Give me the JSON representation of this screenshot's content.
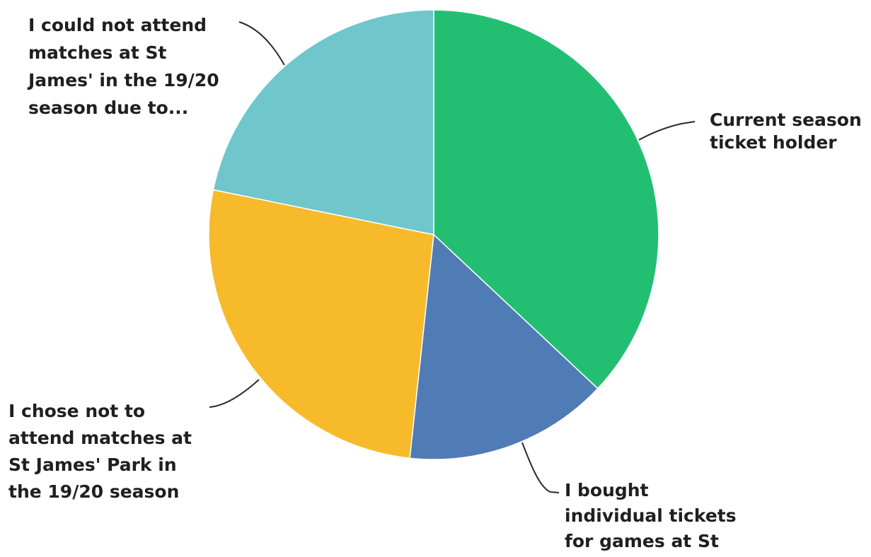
{
  "chart_data": {
    "type": "pie",
    "title": "",
    "start_angle_deg": 0,
    "direction": "clockwise",
    "slices": [
      {
        "label_lines": [
          "Current season",
          "ticket holder"
        ],
        "value": 37.0,
        "color": "#22bf72"
      },
      {
        "label_lines": [
          "I bought",
          "individual tickets",
          "for games at St"
        ],
        "value": 14.7,
        "color": "#507cb5"
      },
      {
        "label_lines": [
          "I chose not to",
          "attend matches at",
          "St James' Park in",
          "the 19/20 season"
        ],
        "value": 26.5,
        "color": "#f6ba2a"
      },
      {
        "label_lines": [
          "I could not attend",
          "matches at St",
          "James' in the 19/20",
          "season due to..."
        ],
        "value": 21.8,
        "color": "#6fc6cb"
      }
    ]
  }
}
